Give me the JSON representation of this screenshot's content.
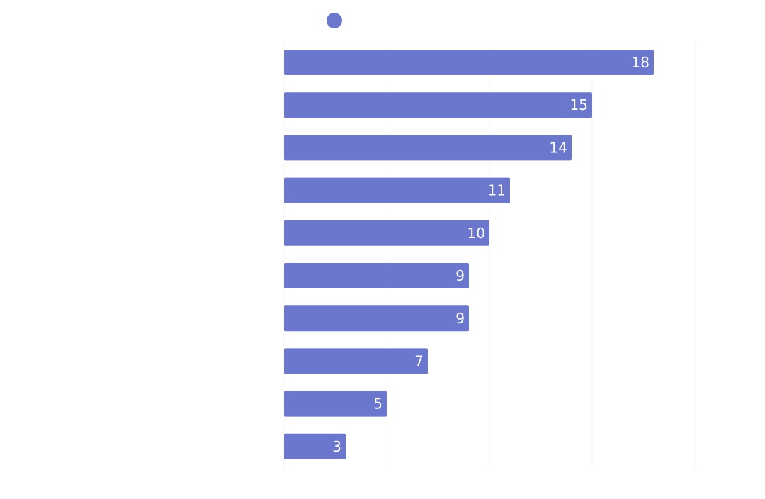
{
  "chart_data": {
    "type": "bar",
    "orientation": "horizontal",
    "title": "",
    "xlabel": "",
    "ylabel": "",
    "categories": [
      "",
      "",
      "",
      "",
      "",
      "",
      "",
      "",
      "",
      ""
    ],
    "series": [
      {
        "values": [
          18,
          15,
          14,
          11,
          10,
          9,
          9,
          7,
          5,
          3
        ],
        "color": "#6b77cc"
      }
    ],
    "data_labels": [
      "18",
      "15",
      "14",
      "11",
      "10",
      "9",
      "9",
      "7",
      "5",
      "3"
    ],
    "xlim": [
      0,
      20
    ],
    "grid": true,
    "legend_position": "top",
    "legend_marker": "circle",
    "label_color": "#ffffff"
  }
}
